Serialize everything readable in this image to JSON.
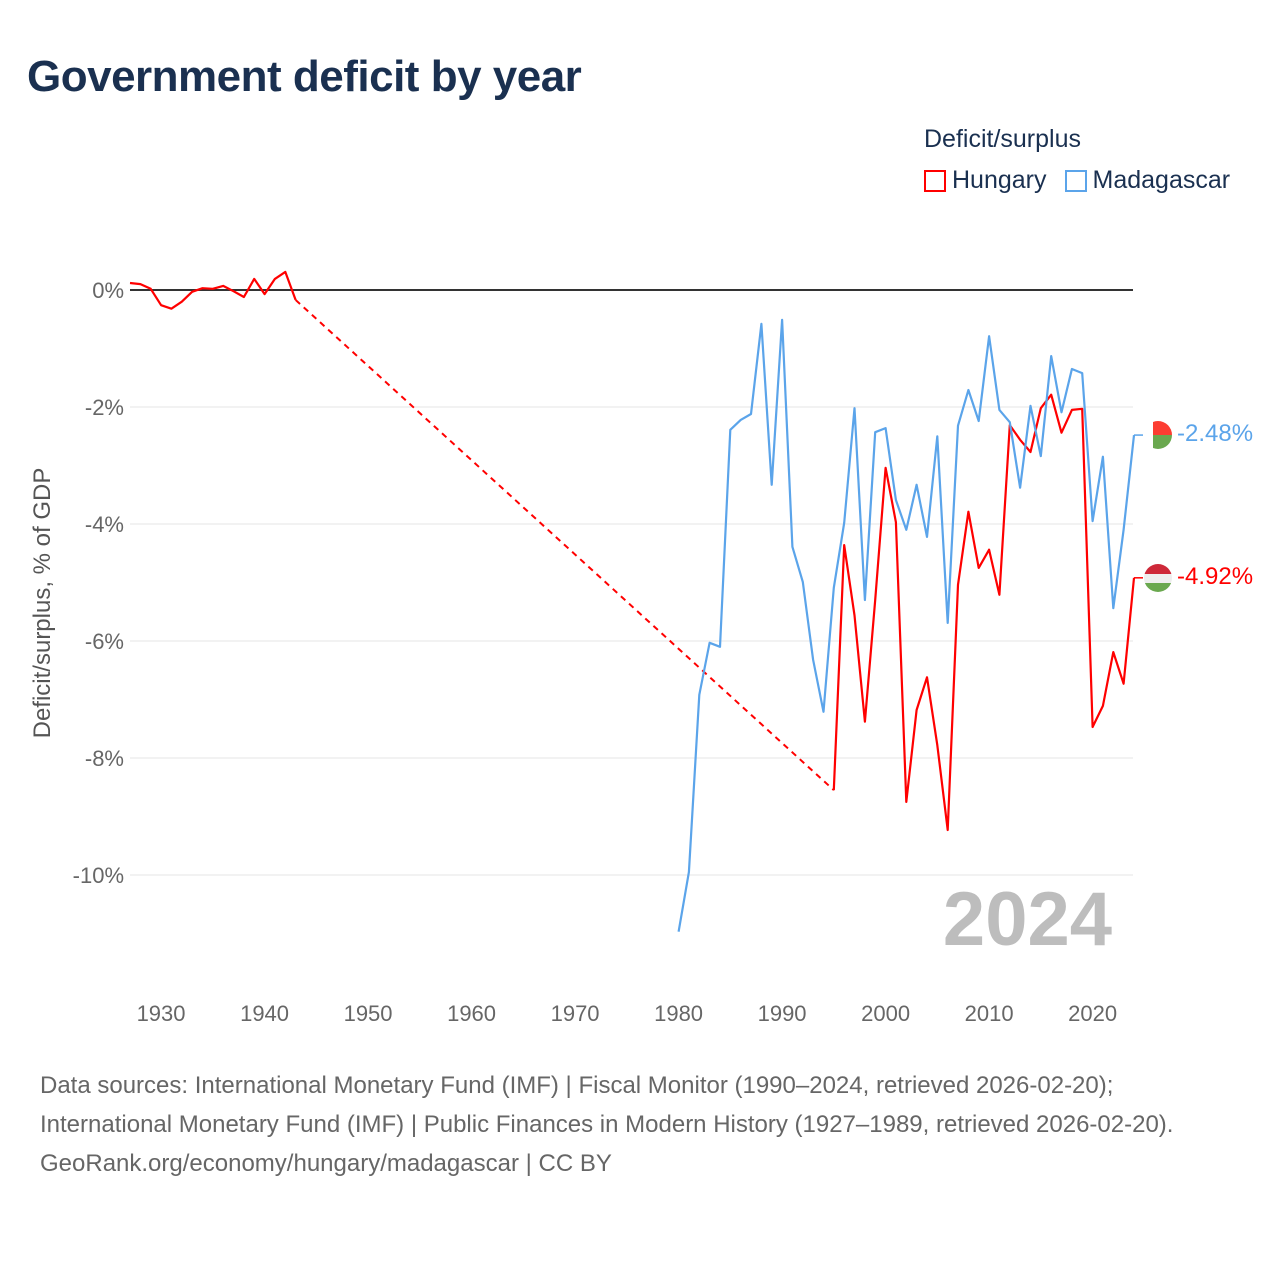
{
  "title": "Government deficit by year",
  "legend": {
    "title": "Deficit/surplus",
    "items": [
      {
        "name": "Hungary",
        "color": "#ff0000"
      },
      {
        "name": "Madagascar",
        "color": "#5ba4ea"
      }
    ]
  },
  "source": {
    "line1": "Data sources: International Monetary Fund (IMF) | Fiscal Monitor (1990–2024, retrieved 2026-02-20); International Monetary Fund (IMF) | Public Finances in Modern History (1927–1989, retrieved 2026-02-20).",
    "line2": "GeoRank.org/economy/hungary/madagascar | CC BY"
  },
  "chart_data": {
    "type": "line",
    "title": "Government deficit by year",
    "ylabel": "Deficit/surplus, % of GDP",
    "xlabel": "",
    "year_label": "2024",
    "xlim": [
      1927,
      2024
    ],
    "ylim": [
      -11.5,
      0.5
    ],
    "xticks": [
      1930,
      1940,
      1950,
      1960,
      1970,
      1980,
      1990,
      2000,
      2010,
      2020
    ],
    "yticks": [
      0,
      -2,
      -4,
      -6,
      -8,
      -10
    ],
    "ytick_labels": [
      "0%",
      "-2%",
      "-4%",
      "-6%",
      "-8%",
      "-10%"
    ],
    "grid": true,
    "legend_position": "top-right",
    "series": [
      {
        "name": "Hungary",
        "color": "#ff0000",
        "end_label": "-4.92%",
        "gap": [
          1943,
          1995
        ],
        "x": [
          1927,
          1928,
          1929,
          1930,
          1931,
          1932,
          1933,
          1934,
          1935,
          1936,
          1937,
          1938,
          1939,
          1940,
          1941,
          1942,
          1943,
          1995,
          1996,
          1997,
          1998,
          1999,
          2000,
          2001,
          2002,
          2003,
          2004,
          2005,
          2006,
          2007,
          2008,
          2009,
          2010,
          2011,
          2012,
          2013,
          2014,
          2015,
          2016,
          2017,
          2018,
          2019,
          2020,
          2021,
          2022,
          2023,
          2024
        ],
        "y": [
          0.12,
          0.1,
          0.02,
          -0.26,
          -0.32,
          -0.2,
          -0.03,
          0.03,
          0.02,
          0.07,
          -0.02,
          -0.12,
          0.19,
          -0.07,
          0.19,
          0.31,
          -0.17,
          -8.55,
          -4.36,
          -5.56,
          -7.38,
          -5.3,
          -3.04,
          -3.97,
          -8.75,
          -7.18,
          -6.62,
          -7.78,
          -9.23,
          -5.04,
          -3.79,
          -4.75,
          -4.44,
          -5.21,
          -2.31,
          -2.56,
          -2.77,
          -2.02,
          -1.79,
          -2.44,
          -2.05,
          -2.03,
          -7.47,
          -7.11,
          -6.19,
          -6.73,
          -4.92
        ]
      },
      {
        "name": "Madagascar",
        "color": "#5ba4ea",
        "end_label": "-2.48%",
        "x": [
          1980,
          1981,
          1982,
          1983,
          1984,
          1985,
          1986,
          1987,
          1988,
          1989,
          1990,
          1991,
          1992,
          1993,
          1994,
          1995,
          1996,
          1997,
          1998,
          1999,
          2000,
          2001,
          2002,
          2003,
          2004,
          2005,
          2006,
          2007,
          2008,
          2009,
          2010,
          2011,
          2012,
          2013,
          2014,
          2015,
          2016,
          2017,
          2018,
          2019,
          2020,
          2021,
          2022,
          2023,
          2024
        ],
        "y": [
          -10.97,
          -9.95,
          -6.92,
          -6.03,
          -6.1,
          -2.39,
          -2.22,
          -2.12,
          -0.58,
          -3.33,
          -0.51,
          -4.39,
          -4.99,
          -6.32,
          -7.21,
          -5.09,
          -3.98,
          -2.02,
          -5.3,
          -2.43,
          -2.36,
          -3.59,
          -4.1,
          -3.33,
          -4.22,
          -2.5,
          -5.69,
          -2.32,
          -1.71,
          -2.24,
          -0.79,
          -2.05,
          -2.26,
          -3.38,
          -1.98,
          -2.84,
          -1.13,
          -2.09,
          -1.35,
          -1.42,
          -3.95,
          -2.85,
          -5.44,
          -4.1,
          -2.48
        ]
      }
    ]
  }
}
